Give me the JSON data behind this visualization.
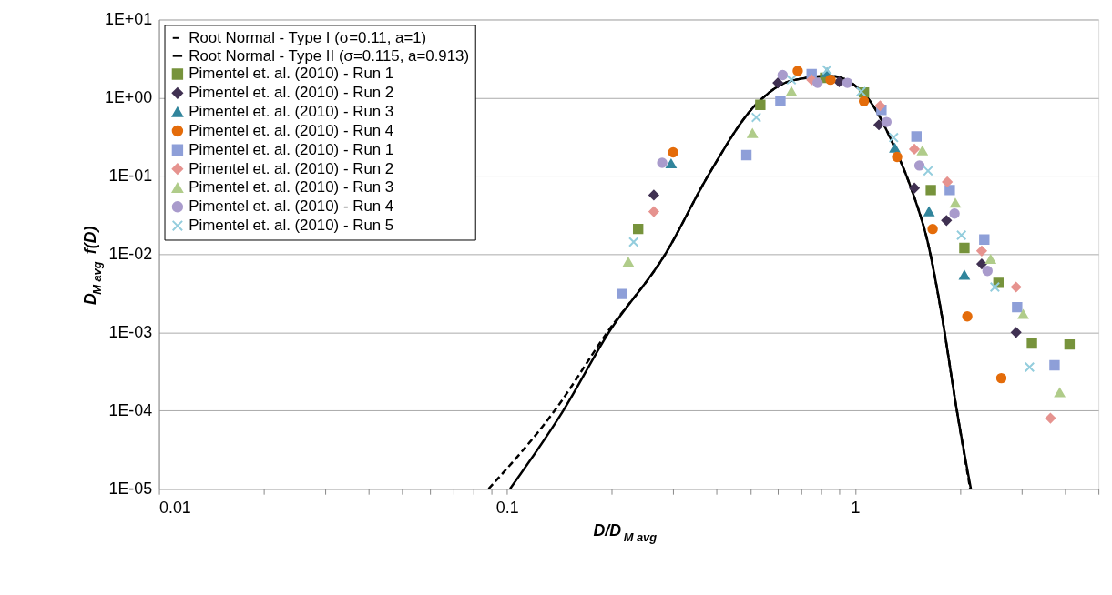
{
  "chart_data": {
    "type": "scatter",
    "xlabel": "D/D$_{M avg}$",
    "ylabel": "D$_{M avg}$ f(D)",
    "log": "xy",
    "grid": "y",
    "legend": "top left",
    "xlim": [
      0.01,
      5
    ],
    "ylim": [
      1e-05,
      10
    ],
    "xticks": [
      0.01,
      {
        "value": 0.02,
        "label": null
      },
      {
        "value": 0.03,
        "label": null
      },
      {
        "value": 0.04,
        "label": null
      },
      {
        "value": 0.05,
        "label": null
      },
      {
        "value": 0.06,
        "label": null
      },
      {
        "value": 0.07,
        "label": null
      },
      {
        "value": 0.08,
        "label": null
      },
      {
        "value": 0.09,
        "label": null
      },
      0.1,
      {
        "value": 0.2,
        "label": null
      },
      {
        "value": 0.3,
        "label": null
      },
      {
        "value": 0.4,
        "label": null
      },
      {
        "value": 0.5,
        "label": null
      },
      {
        "value": 0.6,
        "label": null
      },
      {
        "value": 0.7,
        "label": null
      },
      {
        "value": 0.8,
        "label": null
      },
      {
        "value": 0.9,
        "label": null
      },
      1,
      {
        "value": 2,
        "label": null
      },
      {
        "value": 3,
        "label": null
      },
      {
        "value": 4,
        "label": null
      },
      {
        "value": 5,
        "label": null
      }
    ],
    "yticks": [
      {
        "value": 1e-05,
        "label": "1E-05"
      },
      {
        "value": 0.0001,
        "label": "1E-04"
      },
      {
        "value": 0.001,
        "label": "1E-03"
      },
      {
        "value": 0.01,
        "label": "1E-02"
      },
      {
        "value": 0.1,
        "label": "1E-01"
      },
      {
        "value": 1,
        "label": "1E+00"
      },
      {
        "value": 10,
        "label": "1E+01"
      }
    ],
    "series": [
      {
        "name": "Root Normal - Type I (σ=0.11, a=1)",
        "type": "line",
        "line_style": "dashed",
        "color": "#000000",
        "x": [
          0.0885,
          0.137,
          0.194,
          0.284,
          0.38,
          0.51,
          0.618,
          0.7,
          0.85,
          1.09,
          1.32,
          1.46,
          1.62,
          1.77,
          1.96,
          2.14
        ],
        "values": [
          1e-05,
          0.0001,
          0.001,
          0.0098,
          0.105,
          0.755,
          1.5,
          1.75,
          1.9,
          0.97,
          0.195,
          0.063,
          0.0137,
          0.00175,
          0.0001,
          1e-05
        ]
      },
      {
        "name": "Root Normal - Type II (σ=0.115, a=0.913)",
        "type": "line",
        "line_style": "solid",
        "color": "#000000",
        "x": [
          0.102,
          0.145,
          0.196,
          0.284,
          0.38,
          0.51,
          0.618,
          0.7,
          0.85,
          1.09,
          1.32,
          1.46,
          1.62,
          1.77,
          1.96,
          2.15
        ],
        "values": [
          1e-05,
          0.0001,
          0.001,
          0.0098,
          0.105,
          0.755,
          1.5,
          1.75,
          1.9,
          0.97,
          0.195,
          0.063,
          0.0137,
          0.00175,
          0.0001,
          1e-05
        ]
      },
      {
        "name": "Pimentel et. al. (2010) - Run 1",
        "marker": "square",
        "color": "#77933c",
        "x": [
          0.238,
          0.534,
          0.82,
          1.06,
          1.65,
          2.06,
          2.58,
          3.22,
          4.13
        ],
        "values": [
          0.021,
          0.81,
          1.8,
          1.17,
          0.066,
          0.012,
          0.0043,
          0.00072,
          0.0007
        ]
      },
      {
        "name": "Pimentel et. al. (2010) - Run 2",
        "marker": "diamond",
        "color": "#403152",
        "x": [
          0.264,
          0.6,
          0.9,
          1.17,
          1.48,
          1.83,
          2.31,
          2.9
        ],
        "values": [
          0.057,
          1.55,
          1.6,
          0.45,
          0.07,
          0.027,
          0.0075,
          0.001
        ]
      },
      {
        "name": "Pimentel et. al. (2010) - Run 3",
        "marker": "triangle",
        "color": "#31859c",
        "x": [
          0.296,
          0.83,
          1.3,
          1.63,
          2.06
        ],
        "values": [
          0.143,
          2.1,
          0.227,
          0.035,
          0.0054
        ]
      },
      {
        "name": "Pimentel et. al. (2010) - Run 4",
        "marker": "circle",
        "color": "#e46c0a",
        "x": [
          0.3,
          0.684,
          0.85,
          1.06,
          1.32,
          1.67,
          2.1,
          2.63
        ],
        "values": [
          0.2,
          2.2,
          1.7,
          0.9,
          0.175,
          0.021,
          0.0016,
          0.00026
        ]
      },
      {
        "name": "Pimentel et. al. (2010) - Run 1",
        "marker": "square",
        "color": "#8e9fd8",
        "x": [
          0.214,
          0.487,
          0.61,
          0.75,
          1.19,
          1.5,
          1.87,
          2.35,
          2.92,
          3.74
        ],
        "values": [
          0.0031,
          0.185,
          0.9,
          2.0,
          0.7,
          0.32,
          0.066,
          0.0154,
          0.0021,
          0.00038
        ]
      },
      {
        "name": "Pimentel et. al. (2010) - Run 2",
        "marker": "diamond",
        "color": "#e6938f",
        "x": [
          0.264,
          0.75,
          1.18,
          1.48,
          1.84,
          2.31,
          2.9,
          3.64
        ],
        "values": [
          0.035,
          1.7,
          0.79,
          0.22,
          0.084,
          0.011,
          0.0038,
          8e-05
        ]
      },
      {
        "name": "Pimentel et. al. (2010) - Run 3",
        "marker": "triangle",
        "color": "#b0cc8a",
        "x": [
          0.223,
          0.507,
          0.656,
          1.56,
          1.94,
          2.45,
          3.04,
          3.87
        ],
        "values": [
          0.0079,
          0.35,
          1.2,
          0.21,
          0.045,
          0.0086,
          0.0017,
          0.00017
        ]
      },
      {
        "name": "Pimentel et. al. (2010) - Run 4",
        "marker": "circle",
        "color": "#a99bcc",
        "x": [
          0.279,
          0.619,
          0.78,
          0.95,
          1.23,
          1.53,
          1.93,
          2.4
        ],
        "values": [
          0.147,
          1.95,
          1.55,
          1.55,
          0.49,
          0.136,
          0.033,
          0.0061
        ]
      },
      {
        "name": "Pimentel et. al. (2010) - Run 5",
        "marker": "cross",
        "color": "#93cddd",
        "x": [
          0.231,
          0.52,
          0.656,
          0.83,
          1.04,
          1.29,
          1.62,
          2.02,
          2.52,
          3.17
        ],
        "values": [
          0.0143,
          0.56,
          1.7,
          2.27,
          1.2,
          0.31,
          0.116,
          0.0175,
          0.0038,
          0.00036
        ]
      }
    ]
  }
}
